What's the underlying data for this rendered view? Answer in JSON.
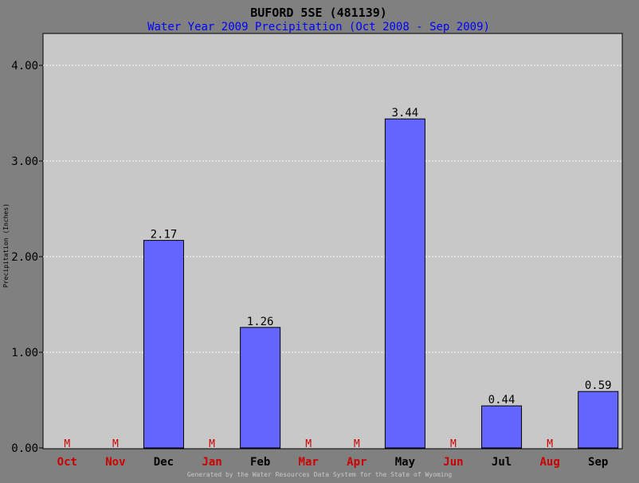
{
  "colors": {
    "page_background": "#808080",
    "plot_background": "#c8c8c8",
    "bar_fill": "#6464ff",
    "bar_stroke": "#000000",
    "title": "#000000",
    "subtitle": "#0000ff",
    "missing_month": "#cc0000",
    "present_month": "#000000",
    "gridline": "#ffffff",
    "footer": "#c8c8c8"
  },
  "chart_data": {
    "type": "bar",
    "title": "BUFORD 5SE (481139)",
    "subtitle": "Water Year 2009 Precipitation (Oct 2008 - Sep 2009)",
    "ylabel": "Precipitation (Inches)",
    "xlabel": "",
    "ylim": [
      0,
      4.0
    ],
    "yticks": [
      0,
      1,
      2,
      3,
      4
    ],
    "ytick_labels": [
      "0.00",
      "1.00",
      "2.00",
      "3.00",
      "4.00"
    ],
    "grid": true,
    "categories": [
      "Oct",
      "Nov",
      "Dec",
      "Jan",
      "Feb",
      "Mar",
      "Apr",
      "May",
      "Jun",
      "Jul",
      "Aug",
      "Sep"
    ],
    "values": [
      null,
      null,
      2.17,
      null,
      1.26,
      null,
      null,
      3.44,
      null,
      0.44,
      null,
      0.59
    ],
    "value_labels": [
      "M",
      "M",
      "2.17",
      "M",
      "1.26",
      "M",
      "M",
      "3.44",
      "M",
      "0.44",
      "M",
      "0.59"
    ],
    "missing_marker": "M"
  },
  "footer": "Generated by the Water Resources Data System for the State of Wyoming"
}
